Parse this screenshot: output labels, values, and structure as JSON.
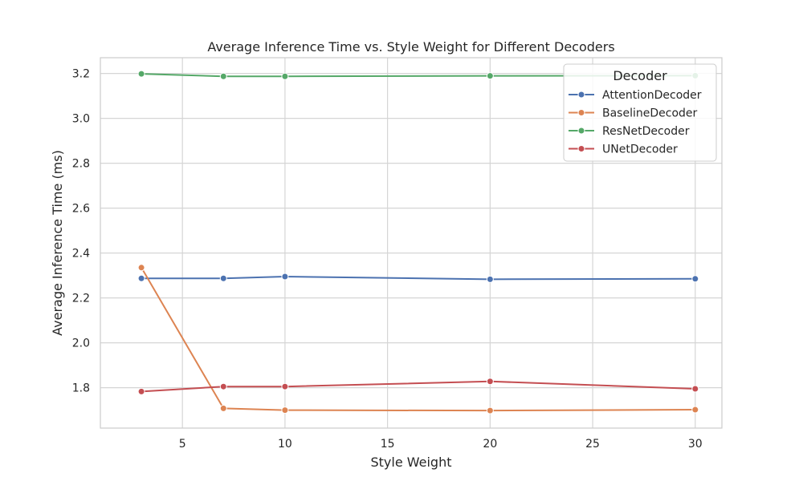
{
  "chart_data": {
    "type": "line",
    "title": "Average Inference Time vs. Style Weight for Different Decoders",
    "xlabel": "Style Weight",
    "ylabel": "Average Inference Time (ms)",
    "xlim": [
      1,
      31.3
    ],
    "ylim": [
      1.62,
      3.27
    ],
    "xticks": [
      5,
      10,
      15,
      20,
      25,
      30
    ],
    "yticks": [
      1.8,
      2.0,
      2.2,
      2.4,
      2.6,
      2.8,
      3.0,
      3.2
    ],
    "ytick_labels": [
      "1.8",
      "2.0",
      "2.2",
      "2.4",
      "2.6",
      "2.8",
      "3.0",
      "3.2"
    ],
    "grid": true,
    "legend_title": "Decoder",
    "legend_position": "top-right",
    "x": [
      3,
      7,
      10,
      20,
      30
    ],
    "series": [
      {
        "name": "AttentionDecoder",
        "color": "#4c72b0",
        "values": [
          2.287,
          2.287,
          2.295,
          2.283,
          2.285
        ]
      },
      {
        "name": "BaselineDecoder",
        "color": "#dd8452",
        "values": [
          2.335,
          1.708,
          1.7,
          1.698,
          1.702
        ]
      },
      {
        "name": "ResNetDecoder",
        "color": "#55a868",
        "values": [
          3.198,
          3.187,
          3.187,
          3.189,
          3.19
        ]
      },
      {
        "name": "UNetDecoder",
        "color": "#c44e52",
        "values": [
          1.783,
          1.805,
          1.805,
          1.828,
          1.795
        ]
      }
    ]
  }
}
